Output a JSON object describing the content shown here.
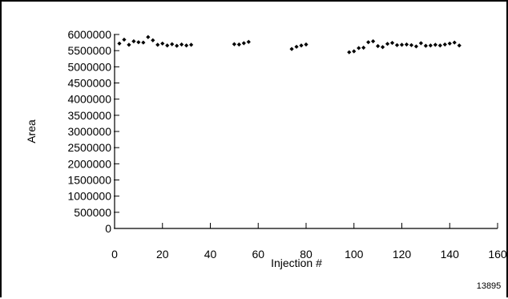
{
  "chart_data": {
    "type": "scatter",
    "title": "",
    "xlabel": "Injection #",
    "ylabel": "Area",
    "xlim": [
      0,
      160
    ],
    "ylim": [
      0,
      6000000
    ],
    "x_ticks": [
      "0",
      "20",
      "40",
      "60",
      "80",
      "100",
      "120",
      "140",
      "160"
    ],
    "y_ticks": [
      "0",
      "500000",
      "1000000",
      "1500000",
      "2000000",
      "2500000",
      "3000000",
      "3500000",
      "4000000",
      "4500000",
      "5000000",
      "5500000",
      "6000000"
    ],
    "grid": false,
    "legend": "none",
    "annotation": "13895",
    "marker_color": "#000000",
    "series": [
      {
        "points": [
          [
            2,
            5720000
          ],
          [
            4,
            5840000
          ],
          [
            6,
            5680000
          ],
          [
            8,
            5790000
          ],
          [
            10,
            5760000
          ],
          [
            12,
            5750000
          ],
          [
            14,
            5920000
          ],
          [
            16,
            5820000
          ],
          [
            18,
            5680000
          ],
          [
            20,
            5720000
          ],
          [
            22,
            5660000
          ],
          [
            24,
            5700000
          ],
          [
            26,
            5650000
          ],
          [
            28,
            5690000
          ],
          [
            30,
            5660000
          ],
          [
            32,
            5680000
          ],
          [
            50,
            5700000
          ],
          [
            52,
            5690000
          ],
          [
            54,
            5730000
          ],
          [
            56,
            5770000
          ],
          [
            74,
            5550000
          ],
          [
            76,
            5620000
          ],
          [
            78,
            5660000
          ],
          [
            80,
            5690000
          ],
          [
            98,
            5450000
          ],
          [
            100,
            5480000
          ],
          [
            102,
            5580000
          ],
          [
            104,
            5590000
          ],
          [
            106,
            5760000
          ],
          [
            108,
            5790000
          ],
          [
            110,
            5640000
          ],
          [
            112,
            5610000
          ],
          [
            114,
            5710000
          ],
          [
            116,
            5740000
          ],
          [
            118,
            5670000
          ],
          [
            120,
            5680000
          ],
          [
            122,
            5690000
          ],
          [
            124,
            5670000
          ],
          [
            126,
            5630000
          ],
          [
            128,
            5730000
          ],
          [
            130,
            5650000
          ],
          [
            132,
            5660000
          ],
          [
            134,
            5680000
          ],
          [
            136,
            5660000
          ],
          [
            138,
            5690000
          ],
          [
            140,
            5720000
          ],
          [
            142,
            5750000
          ],
          [
            144,
            5660000
          ]
        ]
      }
    ]
  }
}
